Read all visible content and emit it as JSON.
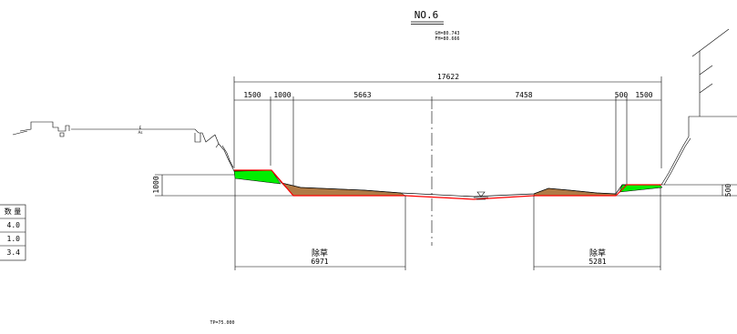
{
  "header": {
    "section_no": "NO.6",
    "gh": "GH=80.743",
    "fh": "FH=80.666"
  },
  "dimensions": {
    "overall": "17622",
    "segments": [
      "1500",
      "1000",
      "5663",
      "7458",
      "500",
      "1500"
    ],
    "left_height": "1000",
    "right_height": "500"
  },
  "weeding": {
    "left_label": "除草",
    "left_value": "6971",
    "right_label": "除草",
    "right_value": "5281"
  },
  "quantity_table": {
    "header": "数 量",
    "rows": [
      "4.0",
      "1.0",
      "3.4"
    ]
  },
  "datum": "TP=75.000",
  "small_labels": {
    "a": "E",
    "b": "As"
  },
  "colors": {
    "green_fill": "#00ee00",
    "soil_fill": "#b07a45",
    "red_line": "#ff0000"
  }
}
